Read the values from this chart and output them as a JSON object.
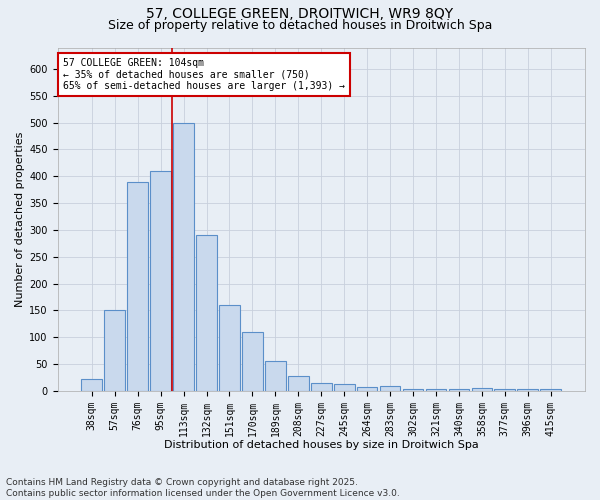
{
  "title_line1": "57, COLLEGE GREEN, DROITWICH, WR9 8QY",
  "title_line2": "Size of property relative to detached houses in Droitwich Spa",
  "xlabel": "Distribution of detached houses by size in Droitwich Spa",
  "ylabel": "Number of detached properties",
  "categories": [
    "38sqm",
    "57sqm",
    "76sqm",
    "95sqm",
    "113sqm",
    "132sqm",
    "151sqm",
    "170sqm",
    "189sqm",
    "208sqm",
    "227sqm",
    "245sqm",
    "264sqm",
    "283sqm",
    "302sqm",
    "321sqm",
    "340sqm",
    "358sqm",
    "377sqm",
    "396sqm",
    "415sqm"
  ],
  "values": [
    22,
    150,
    390,
    410,
    500,
    290,
    160,
    110,
    55,
    28,
    15,
    12,
    7,
    9,
    3,
    3,
    3,
    5,
    3,
    3,
    3
  ],
  "bar_color": "#c9d9ed",
  "bar_edge_color": "#5b8fc9",
  "grid_color": "#c8d0dc",
  "bg_color": "#e8eef5",
  "vline_color": "#cc0000",
  "annotation_text": "57 COLLEGE GREEN: 104sqm\n← 35% of detached houses are smaller (750)\n65% of semi-detached houses are larger (1,393) →",
  "annotation_box_color": "#ffffff",
  "annotation_border_color": "#cc0000",
  "ylim": [
    0,
    640
  ],
  "yticks": [
    0,
    50,
    100,
    150,
    200,
    250,
    300,
    350,
    400,
    450,
    500,
    550,
    600
  ],
  "footer": "Contains HM Land Registry data © Crown copyright and database right 2025.\nContains public sector information licensed under the Open Government Licence v3.0.",
  "title_fontsize": 10,
  "subtitle_fontsize": 9,
  "axis_label_fontsize": 8,
  "tick_fontsize": 7,
  "annotation_fontsize": 7,
  "footer_fontsize": 6.5
}
